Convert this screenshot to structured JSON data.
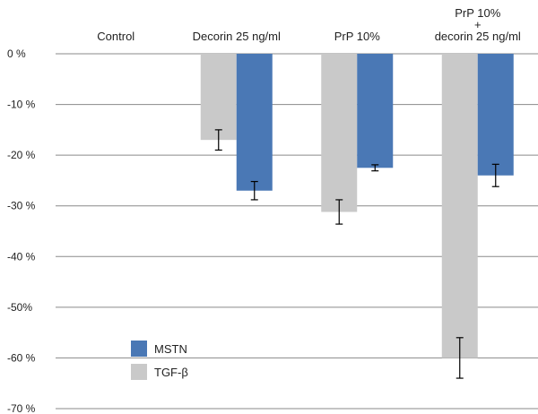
{
  "chart_data": {
    "type": "bar",
    "categories": [
      [
        "Control"
      ],
      [
        "Decorin 25 ng/ml"
      ],
      [
        "PrP 10%"
      ],
      [
        "PrP 10%",
        "+",
        "decorin 25 ng/ml"
      ]
    ],
    "y_ticks": [
      {
        "value": 0,
        "label": "0 %"
      },
      {
        "value": -10,
        "label": "-10 %"
      },
      {
        "value": -20,
        "label": "-20 %"
      },
      {
        "value": -30,
        "label": "-30 %"
      },
      {
        "value": -40,
        "label": "-40 %"
      },
      {
        "value": -50,
        "label": "-50%"
      },
      {
        "value": -60,
        "label": "-60 %"
      },
      {
        "value": -70,
        "label": "-70 %"
      }
    ],
    "ylim": [
      -70,
      0
    ],
    "grid": true,
    "series": [
      {
        "name": "TGF-β",
        "color": "#c9c9c9",
        "values": [
          0,
          -17,
          -31.2,
          -60
        ],
        "errors": [
          0,
          2,
          2.4,
          4
        ]
      },
      {
        "name": "MSTN",
        "color": "#4a78b5",
        "values": [
          0,
          -27,
          -22.5,
          -24
        ],
        "errors": [
          0,
          1.8,
          0.6,
          2.2
        ]
      }
    ],
    "legend": {
      "placement": "bottom-left",
      "order": [
        "MSTN",
        "TGF-β"
      ]
    },
    "category_labels_position": "top"
  }
}
